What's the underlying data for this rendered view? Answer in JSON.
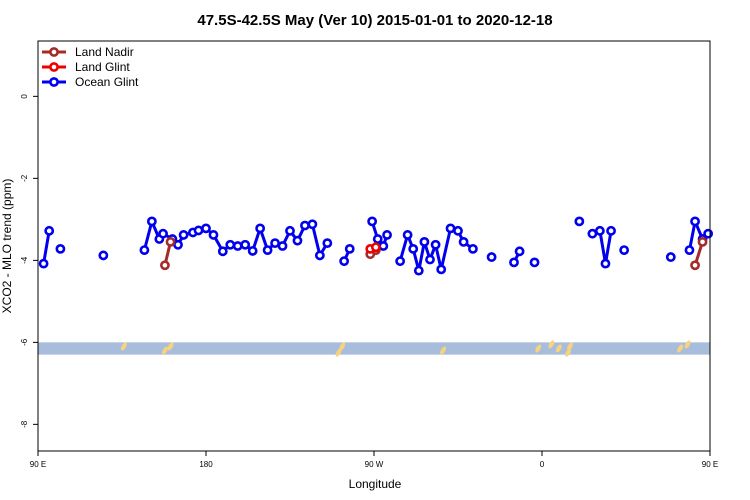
{
  "chart_data": {
    "type": "line",
    "title": "47.5S-42.5S May (Ver 10)   2015-01-01 to 2020-12-18",
    "xlabel": "Longitude",
    "ylabel": "XCO2 - MLO trend (ppm)",
    "xlim": [
      90,
      450
    ],
    "ylim": [
      -8.65,
      1.35
    ],
    "x_ticks": [
      {
        "value": 90,
        "label": "90 E"
      },
      {
        "value": 180,
        "label": "180"
      },
      {
        "value": 270,
        "label": "90 W"
      },
      {
        "value": 360,
        "label": "0"
      },
      {
        "value": 450,
        "label": "90 E"
      },
      {
        "value": 540,
        "label": "180"
      }
    ],
    "y_ticks": [
      {
        "value": 0,
        "label": "0"
      },
      {
        "value": -2,
        "label": "-2"
      },
      {
        "value": -4,
        "label": "-4"
      },
      {
        "value": -6,
        "label": "-6"
      },
      {
        "value": -8,
        "label": "-8"
      }
    ],
    "legend_position": "top-left",
    "grid": false,
    "land_band": {
      "y_min": -6.3,
      "y_max": -6.0,
      "color": "#a8bddb"
    },
    "land_patches": {
      "color": "#f6d37c",
      "x": [
        136,
        158,
        161,
        251,
        253,
        307,
        358,
        365,
        369,
        374,
        375,
        434,
        438
      ],
      "y": [
        -6.1,
        -6.2,
        -6.1,
        -6.25,
        -6.1,
        -6.2,
        -6.15,
        -6.05,
        -6.15,
        -6.25,
        -6.1,
        -6.15,
        -6.05
      ]
    },
    "series": [
      {
        "name": "Ocean Glint",
        "color": "#0000ee",
        "segments": [
          {
            "x": [
              93,
              96
            ],
            "y": [
              -4.08,
              -3.28
            ]
          },
          {
            "x": [
              102
            ],
            "y": [
              -3.72
            ]
          },
          {
            "x": [
              125
            ],
            "y": [
              -3.88
            ]
          },
          {
            "x": [
              147,
              151,
              155,
              157,
              162,
              165,
              168,
              173,
              176,
              180,
              184,
              189,
              193,
              197,
              201,
              205,
              209,
              213,
              217,
              221,
              225,
              229,
              233,
              237,
              241,
              245
            ],
            "y": [
              -3.75,
              -3.05,
              -3.48,
              -3.35,
              -3.48,
              -3.62,
              -3.38,
              -3.32,
              -3.27,
              -3.22,
              -3.38,
              -3.78,
              -3.62,
              -3.65,
              -3.62,
              -3.77,
              -3.22,
              -3.75,
              -3.58,
              -3.65,
              -3.28,
              -3.52,
              -3.15,
              -3.12,
              -3.88,
              -3.58
            ]
          },
          {
            "x": [
              254,
              257
            ],
            "y": [
              -4.02,
              -3.72
            ]
          },
          {
            "x": [
              269,
              272,
              275,
              277
            ],
            "y": [
              -3.05,
              -3.48,
              -3.65,
              -3.38
            ]
          },
          {
            "x": [
              284,
              288,
              291,
              294,
              297,
              300,
              303,
              306,
              311,
              315,
              318,
              323
            ],
            "y": [
              -4.02,
              -3.38,
              -3.72,
              -4.25,
              -3.55,
              -3.98,
              -3.62,
              -4.22,
              -3.22,
              -3.28,
              -3.55,
              -3.72
            ]
          },
          {
            "x": [
              333
            ],
            "y": [
              -3.92
            ]
          },
          {
            "x": [
              345,
              348
            ],
            "y": [
              -4.05,
              -3.78
            ]
          },
          {
            "x": [
              356
            ],
            "y": [
              -4.05
            ]
          },
          {
            "x": [
              380
            ],
            "y": [
              -3.05
            ]
          },
          {
            "x": [
              387,
              391,
              394,
              397
            ],
            "y": [
              -3.35,
              -3.28,
              -4.08,
              -3.28
            ]
          },
          {
            "x": [
              404
            ],
            "y": [
              -3.75
            ]
          },
          {
            "x": [
              429
            ],
            "y": [
              -3.92
            ]
          },
          {
            "x": [
              439,
              442,
              446,
              449
            ],
            "y": [
              -3.75,
              -3.05,
              -3.48,
              -3.35
            ]
          }
        ]
      },
      {
        "name": "Land Nadir",
        "color": "#a52a2a",
        "segments": [
          {
            "x": [
              158,
              161
            ],
            "y": [
              -4.12,
              -3.55
            ]
          },
          {
            "x": [
              268,
              271
            ],
            "y": [
              -3.85,
              -3.75
            ]
          },
          {
            "x": [
              442,
              446
            ],
            "y": [
              -4.12,
              -3.55
            ]
          }
        ]
      },
      {
        "name": "Land Glint",
        "color": "#ee0000",
        "segments": [
          {
            "x": [
              268,
              271
            ],
            "y": [
              -3.72,
              -3.68
            ]
          }
        ]
      }
    ],
    "legend_order": [
      "Land Nadir",
      "Land Glint",
      "Ocean Glint"
    ]
  }
}
